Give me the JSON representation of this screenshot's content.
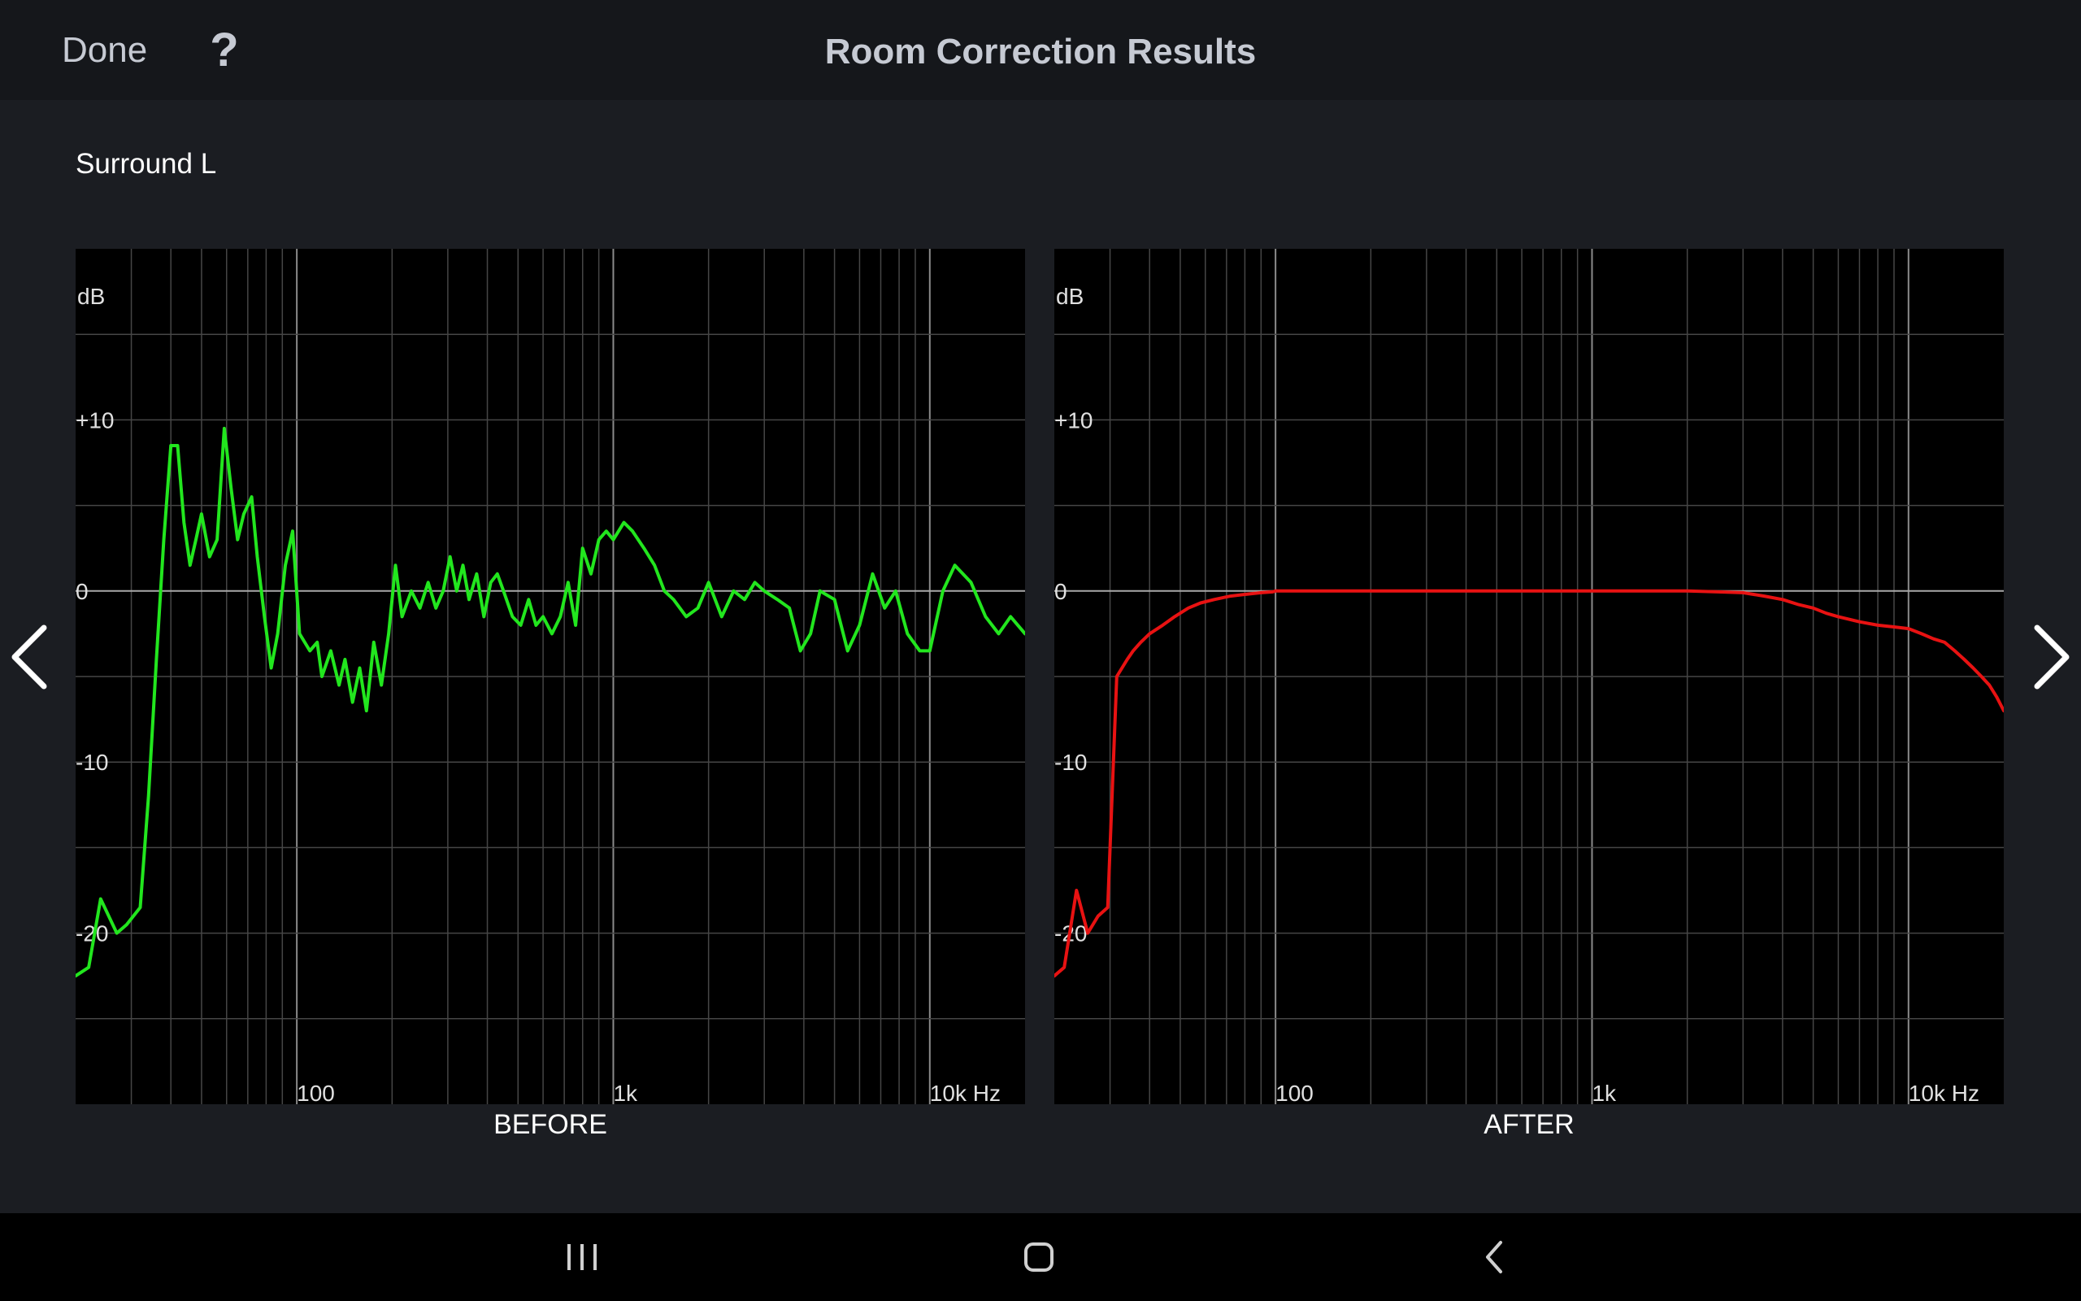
{
  "header": {
    "done_label": "Done",
    "help_label": "?",
    "title": "Room Correction Results"
  },
  "channel": "Surround L",
  "icons": {
    "prev": "chevron-left-icon",
    "next": "chevron-right-icon",
    "recents": "recent-apps-icon",
    "home": "home-icon",
    "back": "back-icon"
  },
  "colors": {
    "before_curve": "#22e61e",
    "after_curve": "#e81212",
    "plot_background": "#000000",
    "grid": "#4a4a4a"
  },
  "chart_data": [
    {
      "type": "line",
      "caption": "BEFORE",
      "ylabel": "dB",
      "x_scale": "log",
      "xlim": [
        20,
        20000
      ],
      "ylim": [
        -30,
        20
      ],
      "y_ticks": [
        {
          "value": 10,
          "label": "+10"
        },
        {
          "value": 0,
          "label": "0"
        },
        {
          "value": -10,
          "label": "-10"
        },
        {
          "value": -20,
          "label": "-20"
        }
      ],
      "x_ticks": [
        {
          "value": 100,
          "label": "100"
        },
        {
          "value": 1000,
          "label": "1k"
        },
        {
          "value": 10000,
          "label": "10k Hz"
        }
      ],
      "series": [
        {
          "color": "#22e61e",
          "x": [
            20,
            22,
            24,
            27,
            29,
            32,
            34,
            36,
            38,
            40,
            42,
            44,
            46,
            48,
            50,
            53,
            56,
            59,
            62,
            65,
            68,
            72,
            75,
            79,
            83,
            87,
            92,
            97,
            102,
            110,
            116,
            120,
            128,
            136,
            142,
            150,
            158,
            166,
            175,
            185,
            195,
            205,
            215,
            230,
            245,
            260,
            275,
            290,
            305,
            320,
            335,
            350,
            370,
            390,
            410,
            430,
            450,
            480,
            510,
            540,
            570,
            600,
            640,
            680,
            720,
            760,
            800,
            850,
            900,
            950,
            1000,
            1080,
            1150,
            1250,
            1350,
            1450,
            1550,
            1700,
            1850,
            2000,
            2200,
            2400,
            2600,
            2800,
            3000,
            3300,
            3600,
            3900,
            4200,
            4500,
            5000,
            5500,
            6000,
            6600,
            7200,
            7800,
            8500,
            9300,
            10000,
            11000,
            12000,
            13500,
            15000,
            16500,
            18000,
            20000
          ],
          "y": [
            -22.5,
            -22,
            -18,
            -20,
            -19.5,
            -18.5,
            -12,
            -4,
            3,
            8.5,
            8.5,
            4,
            1.5,
            3,
            4.5,
            2,
            3,
            9.5,
            6,
            3,
            4.5,
            5.5,
            2,
            -1.5,
            -4.5,
            -2.5,
            1.5,
            3.5,
            -2.5,
            -3.5,
            -3,
            -5,
            -3.5,
            -5.5,
            -4,
            -6.5,
            -4.5,
            -7,
            -3,
            -5.5,
            -2.5,
            1.5,
            -1.5,
            0,
            -1,
            0.5,
            -1,
            0,
            2,
            0,
            1.5,
            -0.5,
            1,
            -1.5,
            0.5,
            1,
            0,
            -1.5,
            -2,
            -0.5,
            -2,
            -1.5,
            -2.5,
            -1.5,
            0.5,
            -2,
            2.5,
            1,
            3,
            3.5,
            3,
            4,
            3.5,
            2.5,
            1.5,
            0,
            -0.5,
            -1.5,
            -1,
            0.5,
            -1.5,
            0,
            -0.5,
            0.5,
            0,
            -0.5,
            -1,
            -3.5,
            -2.5,
            0,
            -0.5,
            -3.5,
            -2,
            1,
            -1,
            0,
            -2.5,
            -3.5,
            -3.5,
            0,
            1.5,
            0.5,
            -1.5,
            -2.5,
            -1.5,
            -2.5
          ]
        }
      ]
    },
    {
      "type": "line",
      "caption": "AFTER",
      "ylabel": "dB",
      "x_scale": "log",
      "xlim": [
        20,
        20000
      ],
      "ylim": [
        -30,
        20
      ],
      "y_ticks": [
        {
          "value": 10,
          "label": "+10"
        },
        {
          "value": 0,
          "label": "0"
        },
        {
          "value": -10,
          "label": "-10"
        },
        {
          "value": -20,
          "label": "-20"
        }
      ],
      "x_ticks": [
        {
          "value": 100,
          "label": "100"
        },
        {
          "value": 1000,
          "label": "1k"
        },
        {
          "value": 10000,
          "label": "10k Hz"
        }
      ],
      "series": [
        {
          "color": "#e81212",
          "x": [
            20,
            21.5,
            23.5,
            25.5,
            27.5,
            29.5,
            31.5,
            34,
            35.5,
            37.5,
            40,
            44,
            48,
            53,
            58,
            64,
            72,
            80,
            90,
            98,
            100,
            110,
            120,
            130,
            140,
            160,
            180,
            200,
            250,
            300,
            400,
            500,
            600,
            800,
            1000,
            1500,
            2000,
            2500,
            3000,
            3500,
            4000,
            4500,
            5000,
            5500,
            6000,
            7000,
            8000,
            9000,
            10000,
            11000,
            12000,
            13000,
            14000,
            15000,
            16000,
            17000,
            18000,
            19000,
            20000
          ],
          "y": [
            -22.5,
            -22,
            -17.5,
            -20,
            -19,
            -18.5,
            -5,
            -4,
            -3.5,
            -3,
            -2.5,
            -2,
            -1.5,
            -1,
            -0.7,
            -0.5,
            -0.3,
            -0.2,
            -0.1,
            -0.05,
            0,
            0,
            0,
            0,
            0,
            0,
            0,
            0,
            0,
            0,
            0,
            0,
            0,
            0,
            0,
            0,
            0,
            -0.05,
            -0.1,
            -0.3,
            -0.5,
            -0.8,
            -1.0,
            -1.3,
            -1.5,
            -1.8,
            -2,
            -2.1,
            -2.2,
            -2.5,
            -2.8,
            -3,
            -3.5,
            -4,
            -4.5,
            -5,
            -5.5,
            -6.2,
            -7
          ]
        }
      ]
    }
  ]
}
